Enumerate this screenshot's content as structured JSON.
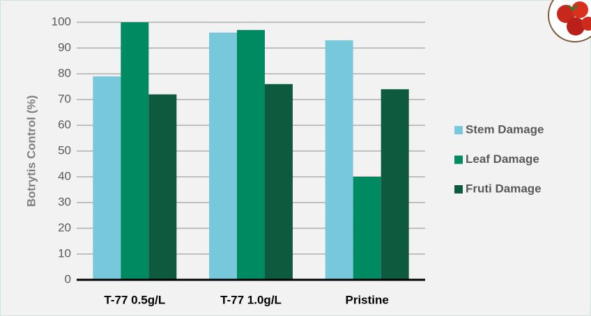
{
  "chart_data": {
    "type": "bar",
    "y_label": "Botrytis Control (%)",
    "categories": [
      "T-77 0.5g/L",
      "T-77 1.0g/L",
      "Pristine"
    ],
    "series": [
      {
        "name": "Stem Damage",
        "color": "#78c8dc",
        "values": [
          79,
          96,
          93
        ]
      },
      {
        "name": "Leaf Damage",
        "color": "#008a62",
        "values": [
          100,
          97,
          40
        ]
      },
      {
        "name": "Fruti Damage",
        "color": "#0e5a3f",
        "values": [
          72,
          76,
          74
        ]
      }
    ],
    "ylim": [
      0,
      100
    ],
    "yticks": [
      0,
      10,
      20,
      30,
      40,
      50,
      60,
      70,
      80,
      90,
      100
    ],
    "grid": true,
    "legend": "right"
  }
}
